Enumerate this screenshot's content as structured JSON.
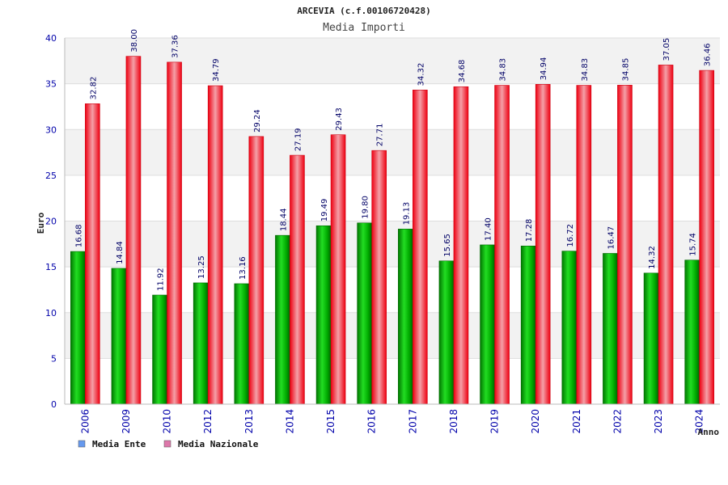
{
  "chart_data": {
    "type": "bar",
    "title": "ARCEVIA (c.f.00106720428)",
    "subtitle": "Media Importi",
    "xlabel": "Anno",
    "ylabel": "Euro",
    "ylim": [
      0,
      40
    ],
    "yticks": [
      0,
      5,
      10,
      15,
      20,
      25,
      30,
      35,
      40
    ],
    "grid": true,
    "legend_position": "bottom-left",
    "categories": [
      "2006",
      "2009",
      "2010",
      "2012",
      "2013",
      "2014",
      "2015",
      "2016",
      "2017",
      "2018",
      "2019",
      "2020",
      "2021",
      "2022",
      "2023",
      "2024"
    ],
    "series": [
      {
        "name": "Media Ente",
        "color": "#00aa00",
        "legend_color": "#6699ee",
        "values": [
          16.68,
          14.84,
          11.92,
          13.25,
          13.16,
          18.44,
          19.49,
          19.8,
          19.13,
          15.65,
          17.4,
          17.28,
          16.72,
          16.47,
          14.32,
          15.74
        ],
        "labels": [
          "16.68",
          "14.84",
          "11.92",
          "13.25",
          "13.16",
          "18.44",
          "19.49",
          "19.80",
          "19.13",
          "15.65",
          "17.40",
          "17.28",
          "16.72",
          "16.47",
          "14.32",
          "15.74"
        ]
      },
      {
        "name": "Media Nazionale",
        "color": "#ee0011",
        "legend_color": "#dd77aa",
        "values": [
          32.82,
          38.0,
          37.36,
          34.79,
          29.24,
          27.19,
          29.43,
          27.71,
          34.32,
          34.68,
          34.83,
          34.94,
          34.83,
          34.85,
          37.05,
          36.46
        ],
        "labels": [
          "32.82",
          "38.00",
          "37.36",
          "34.79",
          "29.24",
          "27.19",
          "29.43",
          "27.71",
          "34.32",
          "34.68",
          "34.83",
          "34.94",
          "34.83",
          "34.85",
          "37.05",
          "36.46"
        ]
      }
    ]
  }
}
